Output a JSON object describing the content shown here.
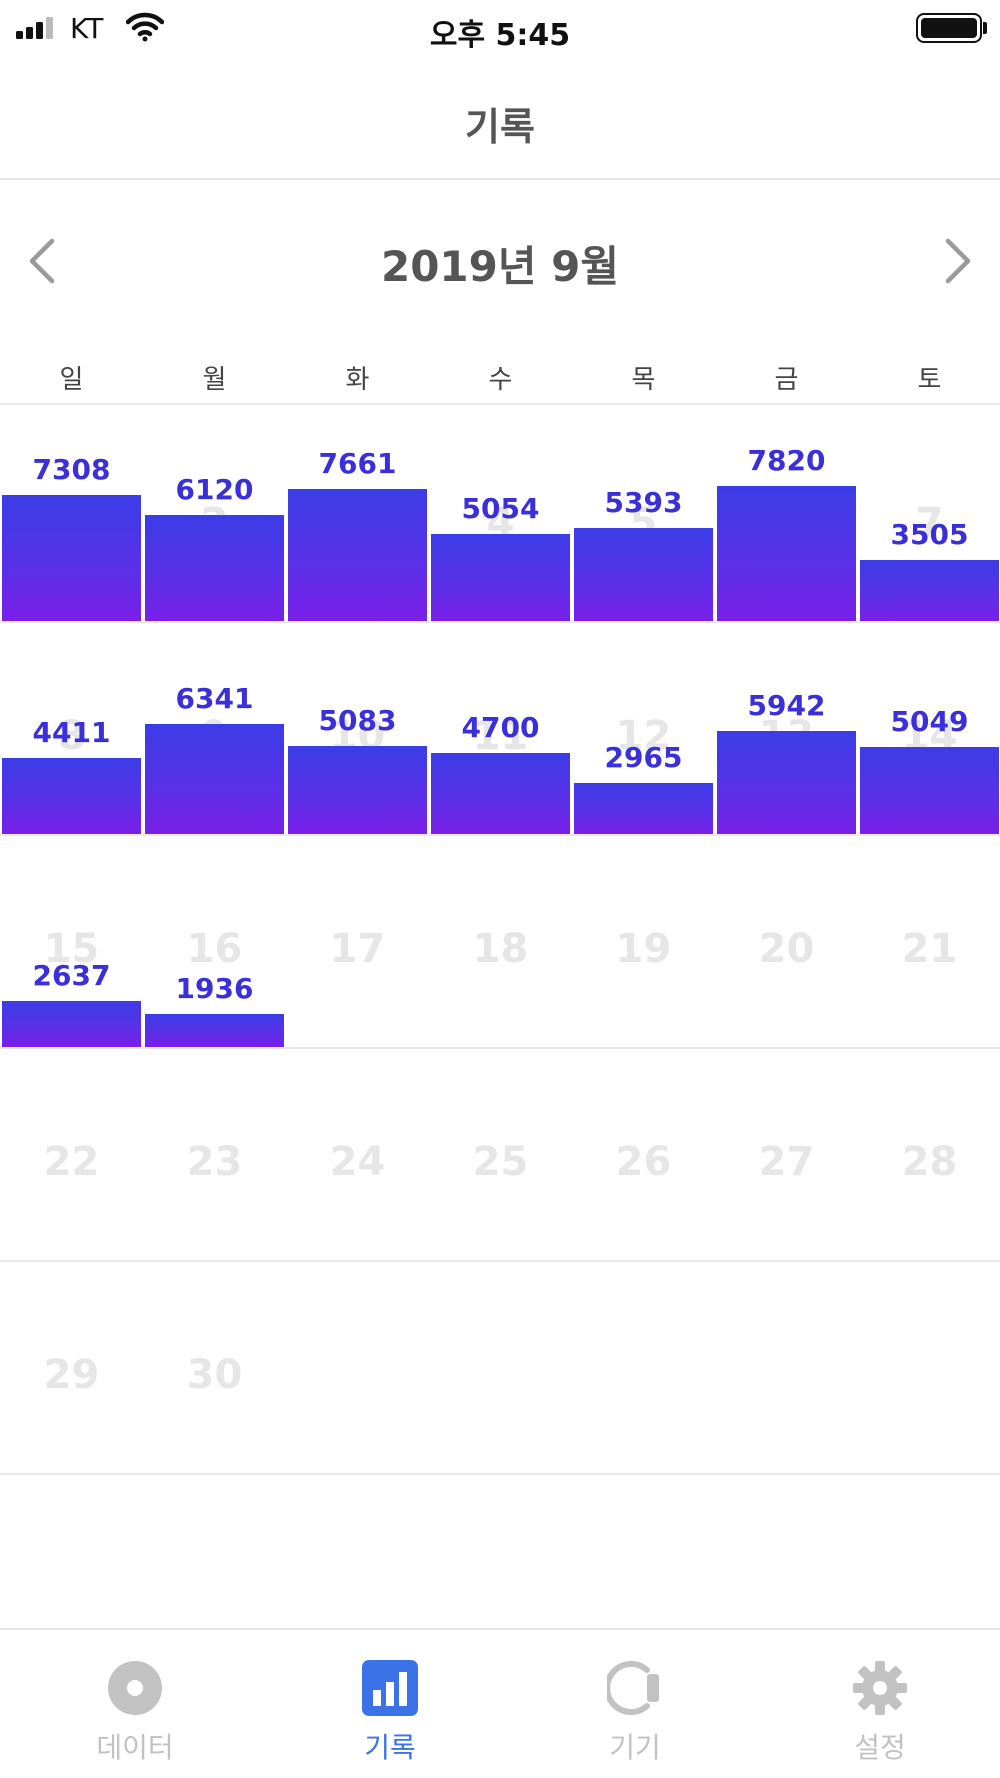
{
  "status_bar": {
    "carrier": "KT",
    "time": "오후 5:45"
  },
  "nav": {
    "title": "기록"
  },
  "calendar": {
    "month_label": "2019년 9월",
    "weekdays": [
      "일",
      "월",
      "화",
      "수",
      "목",
      "금",
      "토"
    ],
    "weeks": [
      [
        "1",
        "2",
        "3",
        "4",
        "5",
        "6",
        "7"
      ],
      [
        "8",
        "9",
        "10",
        "11",
        "12",
        "13",
        "14"
      ],
      [
        "15",
        "16",
        "17",
        "18",
        "19",
        "20",
        "21"
      ],
      [
        "22",
        "23",
        "24",
        "25",
        "26",
        "27",
        "28"
      ],
      [
        "29",
        "30"
      ]
    ]
  },
  "chart_data": {
    "type": "bar",
    "categories": [
      "1",
      "2",
      "3",
      "4",
      "5",
      "6",
      "7",
      "8",
      "9",
      "10",
      "11",
      "12",
      "13",
      "14",
      "15",
      "16"
    ],
    "values": [
      7308,
      6120,
      7661,
      5054,
      5393,
      7820,
      3505,
      4411,
      6341,
      5083,
      4700,
      2965,
      5942,
      5049,
      2637,
      1936
    ],
    "ylim": [
      0,
      10000
    ]
  },
  "tabs": [
    {
      "label": "데이터",
      "icon": "disc-icon",
      "active": false
    },
    {
      "label": "기록",
      "icon": "bar-chart-icon",
      "active": true
    },
    {
      "label": "기기",
      "icon": "device-icon",
      "active": false
    },
    {
      "label": "설정",
      "icon": "gear-icon",
      "active": false
    }
  ],
  "colors": {
    "accent": "#3b72e8",
    "bar_top": "#3b3de6",
    "bar_bottom": "#7a1ee8",
    "value_text": "#3a2fd8",
    "inactive": "#bdbdbd"
  }
}
